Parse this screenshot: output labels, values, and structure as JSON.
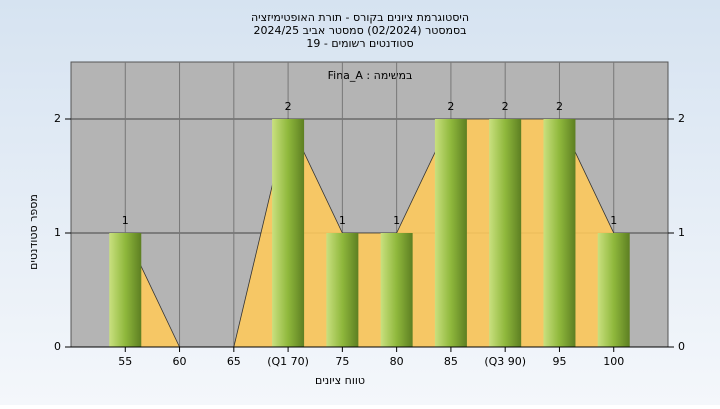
{
  "chart_data": {
    "type": "bar",
    "title": "היסטוגרמת ציונים בקורס - תורת האופטימיזציה",
    "subtitle": "בסמסטר (02/2024) סמסטר אביב 2024/25",
    "subtitle2": "סטודנטים רשומים - 19",
    "annotation": "במשימה : Fina_A",
    "x_label": "טווח ציונים",
    "y_label": "מספר סטודנטים",
    "categories": [
      "55",
      "60",
      "65",
      "(Q1 70)",
      "75",
      "80",
      "85",
      "(Q3 90)",
      "95",
      "100"
    ],
    "values": [
      1,
      0,
      0,
      2,
      1,
      1,
      2,
      2,
      2,
      1
    ],
    "color": "#8fb83c",
    "area_color": "#fdc95c",
    "ylim": [
      0,
      2.5
    ],
    "yticks": [
      0,
      1,
      2
    ],
    "y2lim": [
      0,
      2.5
    ],
    "y2ticks": [
      0,
      1,
      2
    ],
    "grid": true
  }
}
